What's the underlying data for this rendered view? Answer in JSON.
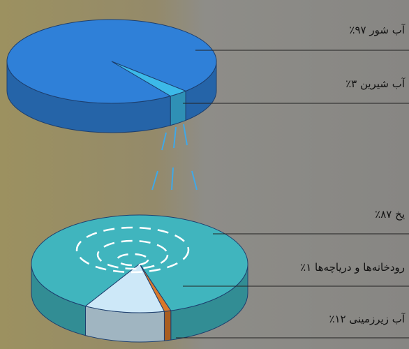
{
  "chart_data": [
    {
      "type": "pie",
      "categories": [
        "آب شور",
        "آب شیرین"
      ],
      "values": [
        97,
        3
      ],
      "value_labels": [
        "۹۷٪",
        "۳٪"
      ],
      "colors": [
        "#2f80d8",
        "#3cb9e8"
      ]
    },
    {
      "type": "pie",
      "categories": [
        "یخ",
        "رودخانه‌ها و دریاچه‌ها",
        "آب زیرزمینی"
      ],
      "values": [
        87,
        1,
        12
      ],
      "value_labels": [
        "۸۷٪",
        "۱٪",
        "۱۲٪"
      ],
      "colors": [
        "#40b5be",
        "#d9782a",
        "#cde8f8"
      ]
    }
  ]
}
